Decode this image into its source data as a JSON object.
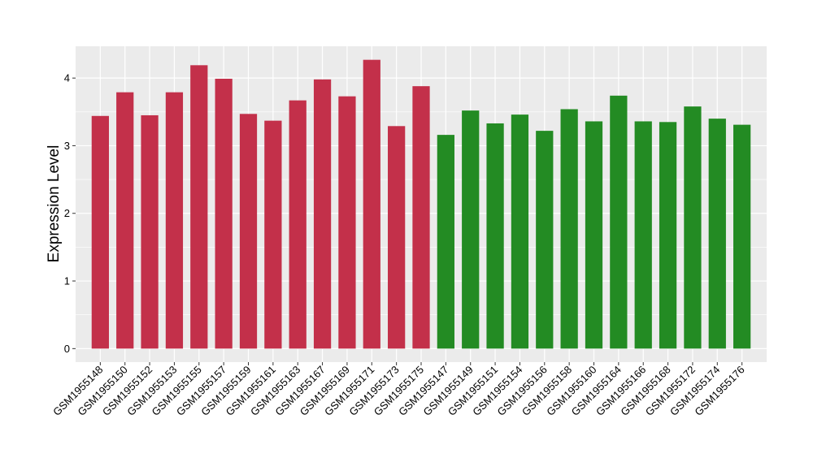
{
  "chart_data": {
    "type": "bar",
    "ylabel": "Expression Level",
    "xlabel": "",
    "ylim": [
      -0.2,
      4.47
    ],
    "yticks": [
      0,
      1,
      2,
      3,
      4
    ],
    "grid": true,
    "legend": "none",
    "categories": [
      "GSM1955148",
      "GSM1955150",
      "GSM1955152",
      "GSM1955153",
      "GSM1955155",
      "GSM1955157",
      "GSM1955159",
      "GSM1955161",
      "GSM1955163",
      "GSM1955167",
      "GSM1955169",
      "GSM1955171",
      "GSM1955173",
      "GSM1955175",
      "GSM1955147",
      "GSM1955149",
      "GSM1955151",
      "GSM1955154",
      "GSM1955156",
      "GSM1955158",
      "GSM1955160",
      "GSM1955164",
      "GSM1955166",
      "GSM1955168",
      "GSM1955172",
      "GSM1955174",
      "GSM1955176"
    ],
    "values": [
      3.44,
      3.79,
      3.45,
      3.79,
      4.19,
      3.99,
      3.47,
      3.37,
      3.67,
      3.98,
      3.73,
      4.27,
      3.29,
      3.88,
      3.16,
      3.52,
      3.33,
      3.46,
      3.22,
      3.54,
      3.36,
      3.74,
      3.36,
      3.35,
      3.58,
      3.4,
      3.31
    ],
    "bar_colors": [
      "#c3304a",
      "#c3304a",
      "#c3304a",
      "#c3304a",
      "#c3304a",
      "#c3304a",
      "#c3304a",
      "#c3304a",
      "#c3304a",
      "#c3304a",
      "#c3304a",
      "#c3304a",
      "#c3304a",
      "#c3304a",
      "#238b23",
      "#238b23",
      "#238b23",
      "#238b23",
      "#238b23",
      "#238b23",
      "#238b23",
      "#238b23",
      "#238b23",
      "#238b23",
      "#238b23",
      "#238b23",
      "#238b23"
    ],
    "group_colors": {
      "group1": "#c3304a",
      "group2": "#238b23"
    },
    "panel_color": "#ebebeb",
    "grid_color": "#ffffff"
  }
}
